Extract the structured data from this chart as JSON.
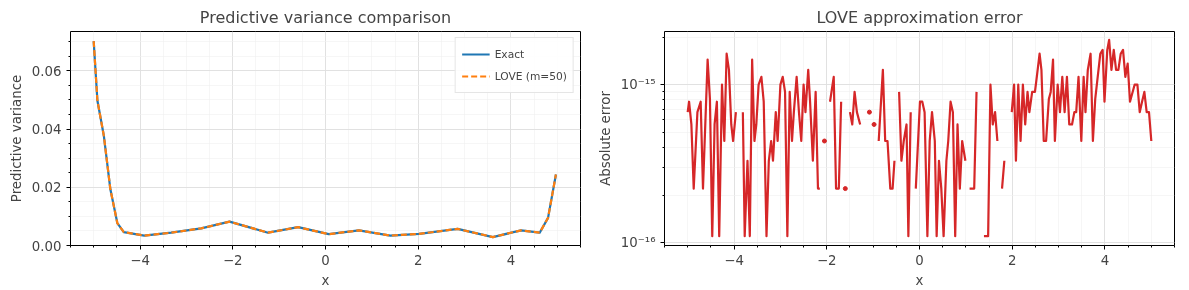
{
  "chart_data": [
    {
      "type": "line",
      "title": "Predictive variance comparison",
      "xlabel": "x",
      "ylabel": "Predictive variance",
      "xlim": [
        -5.5,
        5.5
      ],
      "ylim": [
        0,
        0.0735
      ],
      "xticks": [
        -4,
        -2,
        0,
        2,
        4
      ],
      "yticks": [
        {
          "value": 0,
          "label": "0.00"
        },
        {
          "value": 0.02,
          "label": "0.02"
        },
        {
          "value": 0.04,
          "label": "0.04"
        },
        {
          "value": 0.06,
          "label": "0.06"
        }
      ],
      "grid": true,
      "legend": "top right",
      "x": [
        -5.0,
        -4.92,
        -4.78,
        -4.64,
        -4.49,
        -4.35,
        -3.91,
        -3.33,
        -2.68,
        -2.07,
        -1.24,
        -0.59,
        0.07,
        0.72,
        1.4,
        2.02,
        2.85,
        3.61,
        4.22,
        4.62,
        4.8,
        4.97
      ],
      "series": [
        {
          "name": "Exact",
          "color": "#1f77b4",
          "line_style": "solid",
          "values": [
            0.0702,
            0.0498,
            0.0376,
            0.0193,
            0.0077,
            0.0046,
            0.0034,
            0.0044,
            0.0059,
            0.0082,
            0.0044,
            0.0063,
            0.0039,
            0.0052,
            0.0034,
            0.004,
            0.0057,
            0.0029,
            0.0052,
            0.0044,
            0.0095,
            0.0244
          ]
        },
        {
          "name": "LOVE (m=50)",
          "color": "#ff7f0e",
          "line_style": "dashed",
          "values": [
            0.0702,
            0.0498,
            0.0376,
            0.0193,
            0.0077,
            0.0046,
            0.0034,
            0.0044,
            0.0059,
            0.0082,
            0.0044,
            0.0063,
            0.0039,
            0.0052,
            0.0034,
            0.004,
            0.0057,
            0.0029,
            0.0052,
            0.0044,
            0.0095,
            0.0244
          ]
        }
      ]
    },
    {
      "type": "line",
      "title": "LOVE approximation error",
      "xlabel": "x",
      "ylabel": "Absolute error",
      "log": "y",
      "xlim": [
        -5.5,
        5.5
      ],
      "ylim": [
        9.6e-17,
        2.17e-15
      ],
      "xticks": [
        -4,
        -2,
        0,
        2,
        4
      ],
      "yticks": [
        {
          "value": 1e-16,
          "label": "10⁻¹⁶"
        },
        {
          "value": 1e-15,
          "label": "10⁻¹⁵"
        }
      ],
      "grid": true,
      "x": [
        -5.0,
        -4.97,
        -4.92,
        -4.87,
        -4.79,
        -4.72,
        -4.67,
        -4.57,
        -4.52,
        -4.47,
        -4.42,
        -4.37,
        -4.32,
        -4.26,
        -4.21,
        -4.16,
        -4.11,
        -4.06,
        -4.02,
        -3.96,
        -3.91,
        -3.81,
        -3.77,
        -3.71,
        -3.66,
        -3.61,
        -3.56,
        -3.52,
        -3.47,
        -3.41,
        -3.36,
        -3.3,
        -3.25,
        -3.2,
        -3.16,
        -3.1,
        -3.06,
        -3.0,
        -2.95,
        -2.9,
        -2.85,
        -2.8,
        -2.75,
        -2.71,
        -2.65,
        -2.6,
        -2.55,
        -2.5,
        -2.46,
        -2.4,
        -2.36,
        -2.3,
        -2.24,
        -2.19,
        -2.15,
        -2.11,
        -2.05,
        -2.0,
        -1.93,
        -1.85,
        -1.8,
        -1.74,
        -1.69,
        -1.64,
        -1.6,
        -1.55,
        -1.5,
        -1.45,
        -1.4,
        -1.35,
        -1.28,
        -1.23,
        -1.08,
        -1.03,
        -0.98,
        -0.94,
        -0.88,
        -0.79,
        -0.74,
        -0.69,
        -0.63,
        -0.58,
        -0.54,
        -0.51,
        -0.44,
        -0.39,
        -0.34,
        -0.28,
        -0.24,
        -0.19,
        -0.14,
        -0.08,
        0.01,
        0.06,
        0.11,
        0.17,
        0.22,
        0.27,
        0.33,
        0.37,
        0.42,
        0.47,
        0.52,
        0.58,
        0.62,
        0.67,
        0.72,
        0.77,
        0.82,
        0.87,
        0.92,
        0.99,
        1.04,
        1.08,
        1.18,
        1.23,
        1.28,
        1.39,
        1.48,
        1.53,
        1.58,
        1.63,
        1.68,
        1.73,
        1.78,
        1.83,
        1.88,
        1.94,
        1.99,
        2.04,
        2.08,
        2.13,
        2.18,
        2.23,
        2.28,
        2.33,
        2.37,
        2.43,
        2.49,
        2.53,
        2.59,
        2.63,
        2.68,
        2.73,
        2.79,
        2.83,
        2.88,
        2.92,
        2.98,
        3.03,
        3.08,
        3.13,
        3.18,
        3.23,
        3.29,
        3.34,
        3.38,
        3.43,
        3.49,
        3.54,
        3.58,
        3.63,
        3.69,
        3.74,
        3.79,
        3.9,
        3.95,
        3.99,
        4.05,
        4.09,
        4.14,
        4.19,
        4.24,
        4.29,
        4.34,
        4.39,
        4.44,
        4.49,
        4.54,
        4.64,
        4.7,
        4.75,
        4.8,
        4.85,
        4.9,
        4.95,
        5.0
      ],
      "series": [
        {
          "color": "#d62728",
          "values": [
            6.7e-16,
            7.8e-16,
            5.6e-16,
            2.2e-16,
            6.7e-16,
            7.8e-16,
            2.2e-16,
            1.44e-15,
            8.1e-16,
            1.1e-16,
            5.6e-16,
            7.8e-16,
            1.1e-16,
            1e-15,
            4.4e-16,
            1.57e-15,
            1.24e-15,
            5.6e-16,
            4.4e-16,
            6.7e-16,
            null,
            6.7e-16,
            1.1e-16,
            3.3e-16,
            1.1e-16,
            1.44e-15,
            4.4e-16,
            5.6e-16,
            1e-15,
            1.12e-15,
            7.8e-16,
            1.1e-16,
            3.3e-16,
            4.4e-16,
            3.3e-16,
            6.7e-16,
            4.4e-16,
            1e-15,
            1.12e-15,
            9e-16,
            1.1e-16,
            9e-16,
            4.4e-16,
            6.7e-16,
            1.12e-15,
            6.7e-16,
            4.4e-16,
            1e-15,
            6.7e-16,
            1.24e-15,
            7.8e-16,
            3.3e-16,
            9e-16,
            2.2e-16,
            2.2e-16,
            null,
            4.4e-16,
            null,
            7.8e-16,
            1.12e-15,
            2.2e-16,
            2.2e-16,
            7.8e-16,
            null,
            2.2e-16,
            null,
            6.7e-16,
            5.6e-16,
            9e-16,
            6.7e-16,
            5.6e-16,
            null,
            6.7e-16,
            null,
            5.6e-16,
            null,
            4.4e-16,
            1.24e-15,
            4.4e-16,
            4.4e-16,
            2.2e-16,
            2.2e-16,
            3.3e-16,
            null,
            9e-16,
            3.3e-16,
            4.4e-16,
            5.6e-16,
            1.1e-16,
            6.7e-16,
            null,
            2.2e-16,
            7.8e-16,
            7.8e-16,
            6.7e-16,
            1.1e-16,
            4.4e-16,
            6.7e-16,
            4.4e-16,
            1.1e-16,
            3.3e-16,
            2.2e-16,
            1.1e-16,
            3.3e-16,
            4.4e-16,
            7.8e-16,
            6.7e-16,
            1.1e-16,
            5.6e-16,
            2.2e-16,
            4.4e-16,
            3.3e-16,
            null,
            2.2e-16,
            2.2e-16,
            9e-16,
            null,
            1.1e-16,
            1.1e-16,
            1e-15,
            5.6e-16,
            6.7e-16,
            4.4e-16,
            null,
            2.2e-16,
            3.3e-16,
            null,
            null,
            6.7e-16,
            1e-15,
            3.3e-16,
            1e-15,
            4.4e-16,
            1e-15,
            5.6e-16,
            9e-16,
            6.7e-16,
            9e-16,
            9e-16,
            1.12e-15,
            1.57e-15,
            1.24e-15,
            4.4e-16,
            4.4e-16,
            8.1e-16,
            9e-16,
            1.44e-15,
            4.4e-16,
            1e-15,
            6.7e-16,
            1.12e-15,
            6.7e-16,
            1.12e-15,
            5.6e-16,
            5.6e-16,
            6.7e-16,
            6.7e-16,
            1.12e-15,
            4.4e-16,
            1.12e-15,
            6.7e-16,
            1.24e-15,
            1.57e-15,
            4.4e-16,
            8.1e-16,
            1.57e-15,
            1.66e-15,
            7.8e-16,
            1.66e-15,
            1.92e-15,
            1.24e-15,
            1.66e-15,
            1.24e-15,
            1.24e-15,
            1.57e-15,
            1.66e-15,
            1.12e-15,
            1.36e-15,
            7.8e-16,
            1e-15,
            1e-15,
            6.7e-16,
            7.8e-16,
            9e-16,
            6.7e-16,
            6.7e-16,
            4.4e-16
          ]
        }
      ]
    }
  ]
}
